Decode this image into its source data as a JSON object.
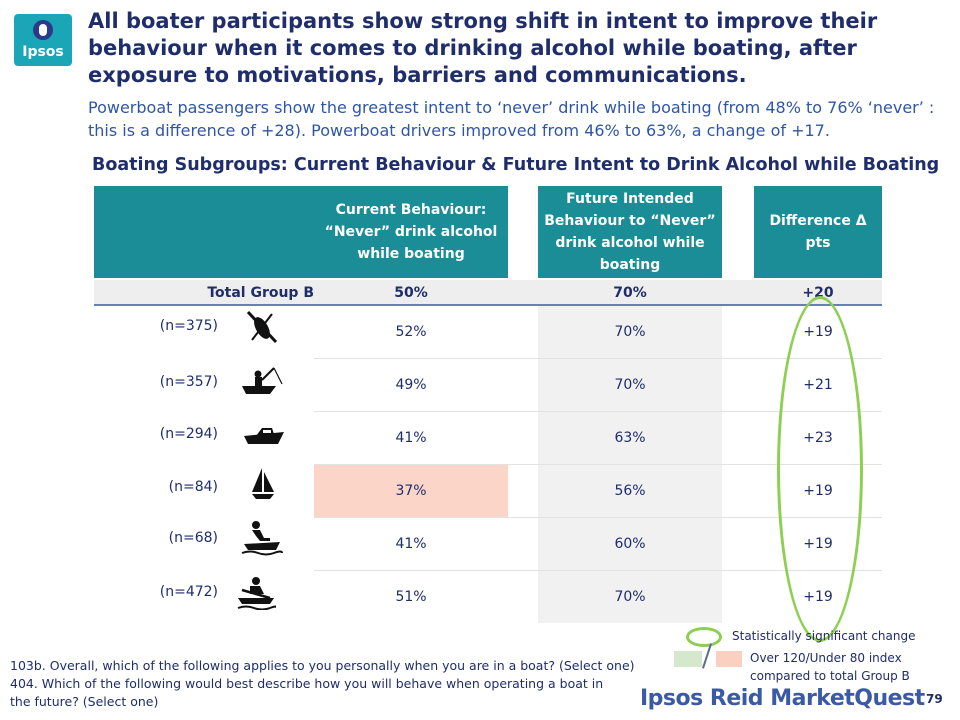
{
  "logo": {
    "text": "Ipsos"
  },
  "title": "All boater participants show strong shift in intent to improve their behaviour when it comes to drinking alcohol while boating, after exposure to motivations, barriers and communications.",
  "subtitle": "Powerboat passengers show the greatest intent to ‘never’ drink while boating (from 48% to 76% ‘never’ : this is a difference of +28). Powerboat drivers improved from 46% to 63%, a change of +17.",
  "table": {
    "title": "Boating Subgroups: Current Behaviour & Future Intent to Drink Alcohol while Boating",
    "headers": {
      "current": "Current Behaviour: “Never” drink alcohol while boating",
      "future": "Future Intended Behaviour to “Never” drink alcohol while boating",
      "difference": "Difference Δ pts"
    },
    "total": {
      "label": "Total Group B",
      "current": "50%",
      "future": "70%",
      "difference": "+20"
    },
    "rows": [
      {
        "n": "(n=375)",
        "icon": "no-paddling-icon",
        "current": "52%",
        "future": "70%",
        "difference": "+19",
        "current_flag": "none"
      },
      {
        "n": "(n=357)",
        "icon": "fishing-boat-icon",
        "current": "49%",
        "future": "70%",
        "difference": "+21",
        "current_flag": "none"
      },
      {
        "n": "(n=294)",
        "icon": "powerboat-icon",
        "current": "41%",
        "future": "63%",
        "difference": "+23",
        "current_flag": "none"
      },
      {
        "n": "(n=84)",
        "icon": "sailboat-icon",
        "current": "37%",
        "future": "56%",
        "difference": "+19",
        "current_flag": "under-80"
      },
      {
        "n": "(n=68)",
        "icon": "personal-watercraft-icon",
        "current": "41%",
        "future": "60%",
        "difference": "+19",
        "current_flag": "none"
      },
      {
        "n": "(n=472)",
        "icon": "rowboat-icon",
        "current": "51%",
        "future": "70%",
        "difference": "+19",
        "current_flag": "none"
      }
    ]
  },
  "legend": {
    "significant": "Statistically significant change",
    "index": "Over 120/Under 80 index compared to total Group B"
  },
  "footnote": {
    "q1": "103b. Overall, which of the following applies to you personally when you are in a boat? (Select one)",
    "q2": "404. Which of the following would best describe how you will behave when operating a boat in the future? (Select one)"
  },
  "brand": "Ipsos Reid MarketQuest",
  "page_number": "79",
  "colors": {
    "header_teal": "#1a8d96",
    "highlight_pink": "#fbd6c8",
    "significance_green": "#8dcf50",
    "text_navy": "#1f2d6b"
  }
}
